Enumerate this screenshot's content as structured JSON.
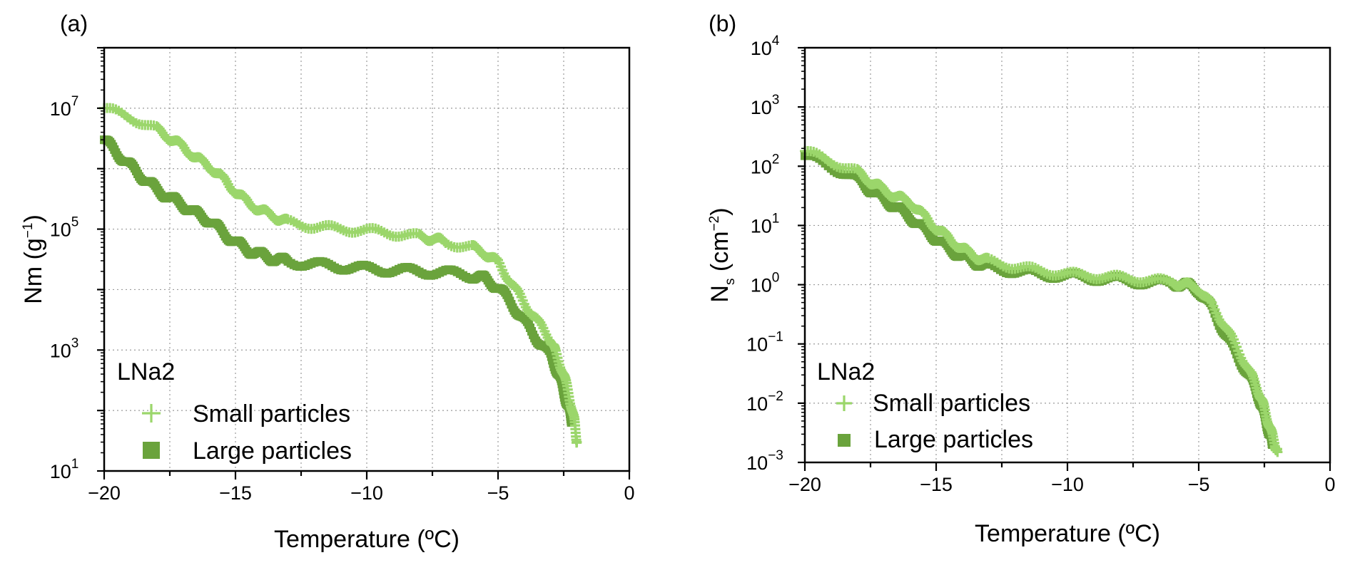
{
  "colors": {
    "small": "#9bd66b",
    "large": "#6aa33c"
  },
  "chart_data": [
    {
      "type": "scatter",
      "panel_label": "(a)",
      "xlabel": "Temperature (ºC)",
      "ylabel_main": "Nm (g",
      "ylabel_sup": "−1",
      "ylabel_end": ")",
      "xlim": [
        -20,
        0
      ],
      "ylim": [
        10,
        100000000
      ],
      "yscale": "log",
      "grid": true,
      "x_ticks": [
        "−20",
        "−15",
        "−10",
        "−5",
        "0"
      ],
      "y_ticks": [
        {
          "value": 10,
          "base": "10",
          "exp": "1"
        },
        {
          "value": 1000,
          "base": "10",
          "exp": "3"
        },
        {
          "value": 100000,
          "base": "10",
          "exp": "5"
        },
        {
          "value": 10000000,
          "base": "10",
          "exp": "7"
        }
      ],
      "legend_title": "LNa2",
      "legend_placement": "bottom-left",
      "series": [
        {
          "name": "Small particles",
          "marker": "plus",
          "x": [
            -20,
            -19,
            -18,
            -17.5,
            -17,
            -16.5,
            -16,
            -15.5,
            -15,
            -14.5,
            -14,
            -13.5,
            -13,
            -12,
            -11,
            -10,
            -9,
            -8,
            -7.5,
            -7,
            -6,
            -5.5,
            -5,
            -4.5,
            -4,
            -3.5,
            -3,
            -2.8,
            -2.5,
            -2.3,
            -2.1,
            -2.0
          ],
          "y": [
            10000000,
            7000000,
            4500000,
            3200000,
            2300000,
            1500000,
            1100000,
            700000,
            420000,
            270000,
            200000,
            160000,
            130000,
            110000,
            100000,
            95000,
            85000,
            75000,
            70000,
            60000,
            50000,
            40000,
            28000,
            13000,
            6000,
            3000,
            1500,
            900,
            400,
            180,
            70,
            30
          ]
        },
        {
          "name": "Large particles",
          "marker": "square",
          "x": [
            -20,
            -19.5,
            -19,
            -18.5,
            -18,
            -17.5,
            -17,
            -16.5,
            -16,
            -15.5,
            -15,
            -14.5,
            -14,
            -13.5,
            -13,
            -12,
            -11,
            -10,
            -9,
            -8,
            -7,
            -6,
            -5.5,
            -5,
            -4.5,
            -4,
            -3.5,
            -3,
            -2.7,
            -2.5,
            -2.3,
            -2.2
          ],
          "y": [
            3000000,
            1800000,
            1100000,
            700000,
            450000,
            330000,
            250000,
            180000,
            140000,
            90000,
            60000,
            45000,
            37000,
            32000,
            29000,
            26000,
            24000,
            22000,
            21000,
            20000,
            19000,
            17000,
            15000,
            11000,
            6000,
            3000,
            1500,
            800,
            400,
            200,
            100,
            70
          ]
        }
      ]
    },
    {
      "type": "scatter",
      "panel_label": "(b)",
      "xlabel": "Temperature (ºC)",
      "ylabel_main": "N",
      "ylabel_sub": "s",
      "ylabel_mid": " (cm",
      "ylabel_sup": "−2",
      "ylabel_end": ")",
      "xlim": [
        -20,
        0
      ],
      "ylim": [
        0.001,
        10000
      ],
      "yscale": "log",
      "grid": true,
      "x_ticks": [
        "−20",
        "−15",
        "−10",
        "−5",
        "0"
      ],
      "y_ticks": [
        {
          "value": 0.001,
          "base": "10",
          "exp": "−3"
        },
        {
          "value": 0.01,
          "base": "10",
          "exp": "−2"
        },
        {
          "value": 0.1,
          "base": "10",
          "exp": "−1"
        },
        {
          "value": 1,
          "base": "10",
          "exp": "0"
        },
        {
          "value": 10,
          "base": "10",
          "exp": "1"
        },
        {
          "value": 100,
          "base": "10",
          "exp": "2"
        },
        {
          "value": 1000,
          "base": "10",
          "exp": "3"
        },
        {
          "value": 10000,
          "base": "10",
          "exp": "4"
        }
      ],
      "legend_title": "LNa2",
      "legend_placement": "bottom-left",
      "series": [
        {
          "name": "Small particles",
          "marker": "plus",
          "x": [
            -20,
            -19,
            -18,
            -17.5,
            -17,
            -16.5,
            -16,
            -15.5,
            -15,
            -14.5,
            -14,
            -13.5,
            -13,
            -12,
            -11,
            -10,
            -9,
            -8,
            -7,
            -6,
            -5.5,
            -5,
            -4.5,
            -4,
            -3.5,
            -3,
            -2.7,
            -2.5,
            -2.3,
            -2.1,
            -2.0
          ],
          "y": [
            180,
            120,
            80,
            55,
            40,
            30,
            25,
            15,
            9,
            6,
            4,
            3,
            2.5,
            2,
            1.7,
            1.5,
            1.4,
            1.3,
            1.2,
            1.1,
            1.0,
            0.85,
            0.45,
            0.2,
            0.08,
            0.03,
            0.015,
            0.008,
            0.004,
            0.002,
            0.0015
          ]
        },
        {
          "name": "Large particles",
          "marker": "square",
          "x": [
            -20,
            -19,
            -18,
            -17.5,
            -17,
            -16.5,
            -16,
            -15.5,
            -15,
            -14.5,
            -14,
            -13.5,
            -13,
            -12,
            -11,
            -10,
            -9,
            -8,
            -7,
            -6,
            -5.5,
            -5,
            -4.5,
            -4,
            -3.5,
            -3,
            -2.7,
            -2.5,
            -2.3,
            -2.2
          ],
          "y": [
            150,
            100,
            60,
            40,
            28,
            20,
            14,
            9,
            6,
            4,
            3,
            2.4,
            2,
            1.7,
            1.5,
            1.4,
            1.3,
            1.2,
            1.1,
            1.05,
            1.0,
            0.8,
            0.4,
            0.15,
            0.06,
            0.025,
            0.012,
            0.006,
            0.003,
            0.002
          ]
        }
      ]
    }
  ]
}
